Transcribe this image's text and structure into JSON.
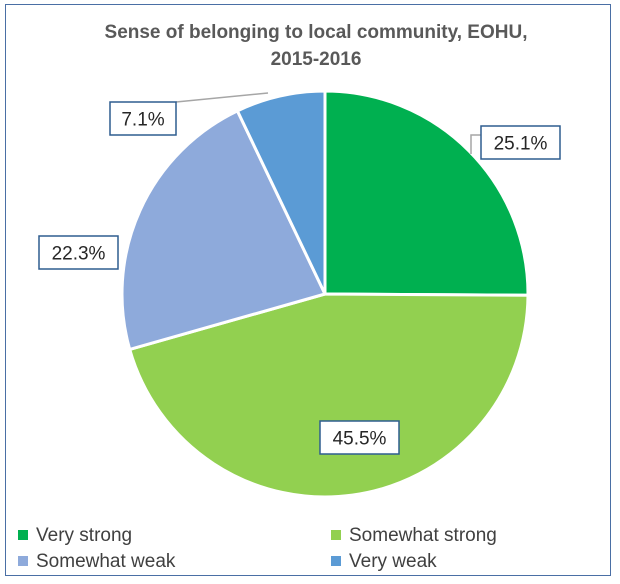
{
  "chart_data": {
    "type": "pie",
    "title_lines": [
      "Sense of belonging to local community, EOHU,",
      "2015-2016"
    ],
    "slices": [
      {
        "name": "Very strong",
        "value": 25.1,
        "label": "25.1%",
        "color": "#00b050"
      },
      {
        "name": "Somewhat strong",
        "value": 45.5,
        "label": "45.5%",
        "color": "#92d050"
      },
      {
        "name": "Somewhat weak",
        "value": 22.3,
        "label": "22.3%",
        "color": "#8eaadb"
      },
      {
        "name": "Very weak",
        "value": 7.1,
        "label": "7.1%",
        "color": "#5b9bd5"
      }
    ],
    "start_angle_deg": 0,
    "direction": "clockwise",
    "legend_position": "bottom"
  }
}
